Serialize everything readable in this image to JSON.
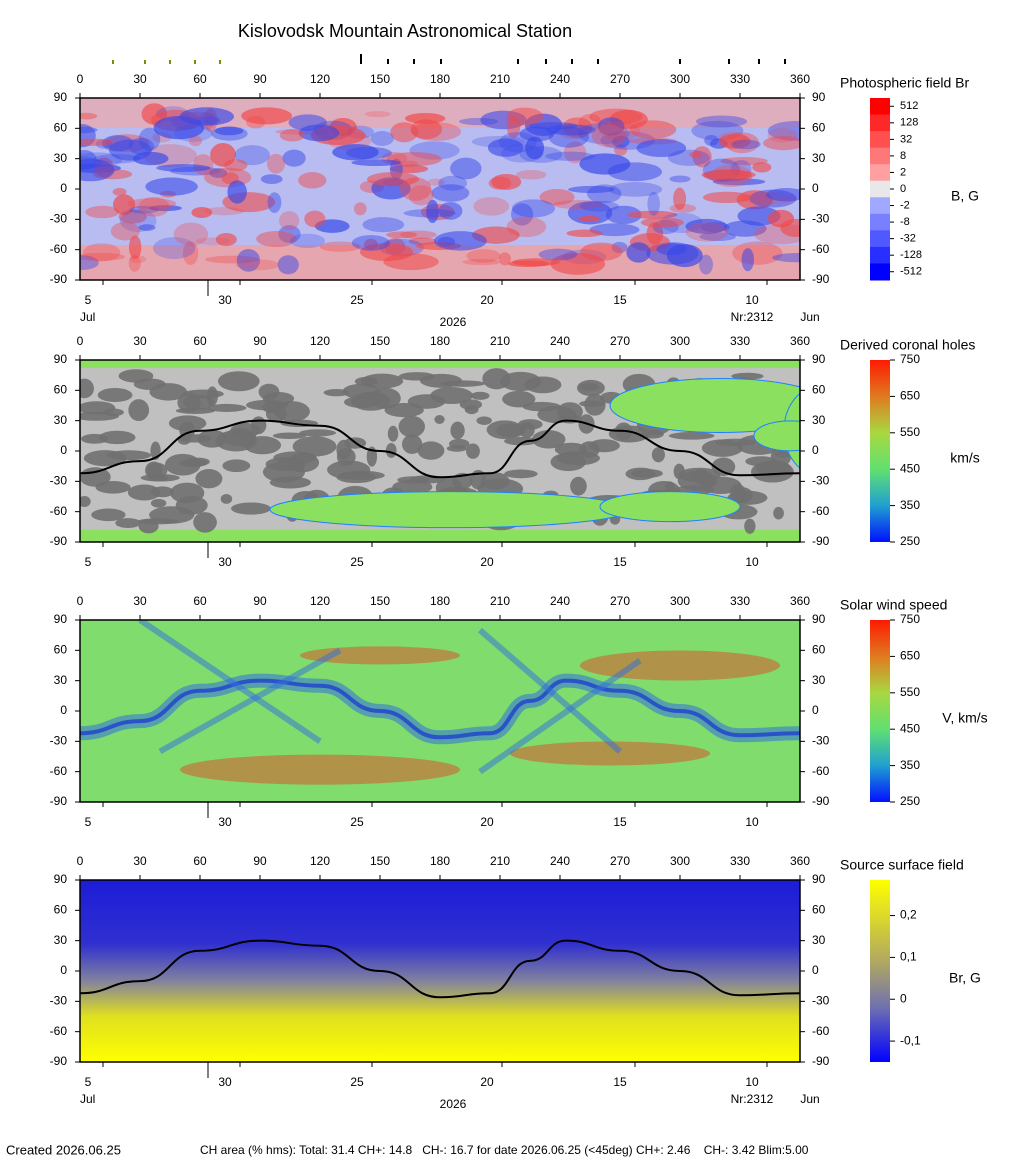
{
  "page": {
    "title": "Kislovodsk Mountain Astronomical Station",
    "created": "Created  2026.06.25",
    "stats": "CH area (% hms): Total: 31.4 CH+: 14.8   CH-: 16.7 for date 2026.06.25 (<45deg) CH+: 2.46    CH-: 3.42 Blim:5.00"
  },
  "chart_data": [
    {
      "type": "map",
      "title": "Photospheric field Br",
      "colorbar_label": "B, G",
      "xlim": [
        0,
        360
      ],
      "xticks": [
        0,
        30,
        60,
        90,
        120,
        150,
        180,
        210,
        240,
        270,
        300,
        330,
        360
      ],
      "ylim": [
        -90,
        90
      ],
      "yticks": [
        90,
        60,
        30,
        0,
        -30,
        -60,
        -90
      ],
      "date_ticks": [
        {
          "value": 4,
          "label": "5"
        },
        {
          "value": 72.5,
          "label": "30"
        },
        {
          "value": 138.5,
          "label": "25"
        },
        {
          "value": 203.5,
          "label": "20"
        },
        {
          "value": 270,
          "label": "15"
        },
        {
          "value": 336,
          "label": "10"
        }
      ],
      "bottom_labels": [
        "Jul",
        "2026",
        "Nr:2312",
        "Jun"
      ],
      "colorbar": {
        "scale": "symlog",
        "ticks": [
          512,
          128,
          32,
          8,
          2,
          0,
          -2,
          -8,
          -32,
          -128,
          -512
        ]
      }
    },
    {
      "type": "map",
      "title": "Derived coronal holes",
      "colorbar_label": "km/s",
      "xlim": [
        0,
        360
      ],
      "xticks": [
        0,
        30,
        60,
        90,
        120,
        150,
        180,
        210,
        240,
        270,
        300,
        330,
        360
      ],
      "ylim": [
        -90,
        90
      ],
      "yticks": [
        90,
        60,
        30,
        0,
        -30,
        -60,
        -90
      ],
      "date_ticks": [
        {
          "value": 4,
          "label": "5"
        },
        {
          "value": 72.5,
          "label": "30"
        },
        {
          "value": 138.5,
          "label": "25"
        },
        {
          "value": 203.5,
          "label": "20"
        },
        {
          "value": 270,
          "label": "15"
        },
        {
          "value": 336,
          "label": "10"
        }
      ],
      "colorbar": {
        "scale": "linear",
        "lim": [
          250,
          750
        ],
        "ticks": [
          750,
          650,
          550,
          450,
          350,
          250
        ]
      }
    },
    {
      "type": "map",
      "title": "Solar wind speed",
      "colorbar_label": "V, km/s",
      "xlim": [
        0,
        360
      ],
      "xticks": [
        0,
        30,
        60,
        90,
        120,
        150,
        180,
        210,
        240,
        270,
        300,
        330,
        360
      ],
      "ylim": [
        -90,
        90
      ],
      "yticks": [
        90,
        60,
        30,
        0,
        -30,
        -60,
        -90
      ],
      "date_ticks": [
        {
          "value": 4,
          "label": "5"
        },
        {
          "value": 72.5,
          "label": "30"
        },
        {
          "value": 138.5,
          "label": "25"
        },
        {
          "value": 203.5,
          "label": "20"
        },
        {
          "value": 270,
          "label": "15"
        },
        {
          "value": 336,
          "label": "10"
        }
      ],
      "colorbar": {
        "scale": "linear",
        "lim": [
          250,
          750
        ],
        "ticks": [
          750,
          650,
          550,
          450,
          350,
          250
        ]
      }
    },
    {
      "type": "map",
      "title": "Source surface field",
      "colorbar_label": "Br, G",
      "xlim": [
        0,
        360
      ],
      "xticks": [
        0,
        30,
        60,
        90,
        120,
        150,
        180,
        210,
        240,
        270,
        300,
        330,
        360
      ],
      "ylim": [
        -90,
        90
      ],
      "yticks": [
        90,
        60,
        30,
        0,
        -30,
        -60,
        -90
      ],
      "date_ticks": [
        {
          "value": 4,
          "label": "5"
        },
        {
          "value": 72.5,
          "label": "30"
        },
        {
          "value": 138.5,
          "label": "25"
        },
        {
          "value": 203.5,
          "label": "20"
        },
        {
          "value": 270,
          "label": "15"
        },
        {
          "value": 336,
          "label": "10"
        }
      ],
      "bottom_labels": [
        "Jul",
        "2026",
        "Nr:2312",
        "Jun"
      ],
      "colorbar": {
        "scale": "linear",
        "lim": [
          -0.15,
          0.285
        ],
        "ticks": [
          {
            "value": 0.2,
            "label": "0,2"
          },
          {
            "value": 0.1,
            "label": "0,1"
          },
          {
            "value": 0,
            "label": "0"
          },
          {
            "value": -0.1,
            "label": "-0,1"
          }
        ]
      }
    }
  ]
}
